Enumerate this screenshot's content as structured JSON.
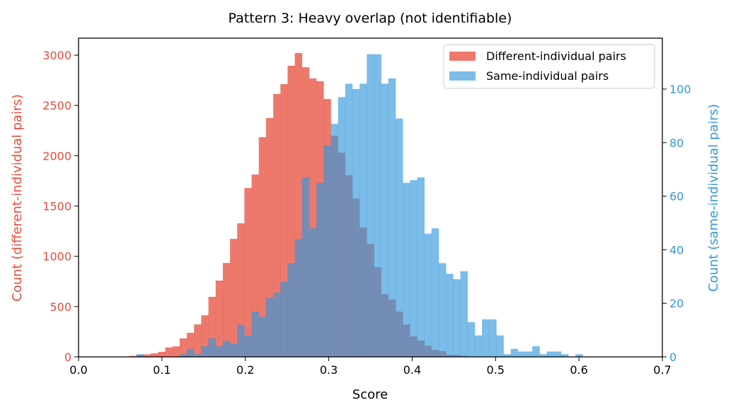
{
  "chart_data": {
    "type": "bar",
    "title": "Pattern 3: Heavy overlap (not identifiable)",
    "xlabel": "Score",
    "ylabel_left": "Count (different-individual pairs)",
    "ylabel_right": "Count (same-individual pairs)",
    "xlim": [
      0,
      0.7
    ],
    "ylim_left": [
      0,
      3169
    ],
    "ylim_right": [
      0,
      119
    ],
    "xticks": [
      "0.0",
      "0.1",
      "0.2",
      "0.3",
      "0.4",
      "0.5",
      "0.6",
      "0.7"
    ],
    "yticks_left": [
      "0",
      "500",
      "1000",
      "1500",
      "2000",
      "2500",
      "3000"
    ],
    "yticks_right": [
      "0",
      "20",
      "40",
      "60",
      "80",
      "100"
    ],
    "bin_start": 0.0608,
    "bin_width": 0.00863,
    "legend_position": "top-right",
    "colors": {
      "left_axis": "#e74c3c",
      "right_axis": "#3498db"
    },
    "series": [
      {
        "name": "Different-individual pairs",
        "axis": "left",
        "color": "#e74c3c",
        "values": [
          10,
          20,
          25,
          35,
          50,
          94,
          105,
          183,
          239,
          323,
          414,
          597,
          759,
          934,
          1173,
          1328,
          1679,
          1813,
          2185,
          2375,
          2614,
          2712,
          2895,
          3021,
          2880,
          2768,
          2740,
          2564,
          2199,
          2030,
          1806,
          1574,
          1286,
          1124,
          892,
          625,
          569,
          450,
          323,
          204,
          162,
          112,
          70,
          56,
          21,
          21,
          10,
          0,
          0,
          0,
          0,
          0,
          0,
          0,
          0,
          0,
          0,
          0,
          0,
          0,
          0,
          0,
          0
        ]
      },
      {
        "name": "Same-individual pairs",
        "axis": "right",
        "color": "#3498db",
        "values": [
          0,
          1,
          0,
          0,
          0,
          0,
          0,
          1,
          3,
          1,
          4,
          7,
          4,
          6,
          5,
          12,
          8,
          17,
          15,
          22,
          24,
          28,
          35,
          44,
          67,
          48,
          65,
          79,
          87,
          97,
          102,
          100,
          102,
          113,
          113,
          102,
          104,
          89,
          65,
          66,
          67,
          46,
          48,
          35,
          31,
          29,
          32,
          13,
          8,
          14,
          14,
          8,
          1,
          3,
          2,
          2,
          4,
          1,
          2,
          2,
          1,
          0,
          1
        ]
      }
    ]
  }
}
